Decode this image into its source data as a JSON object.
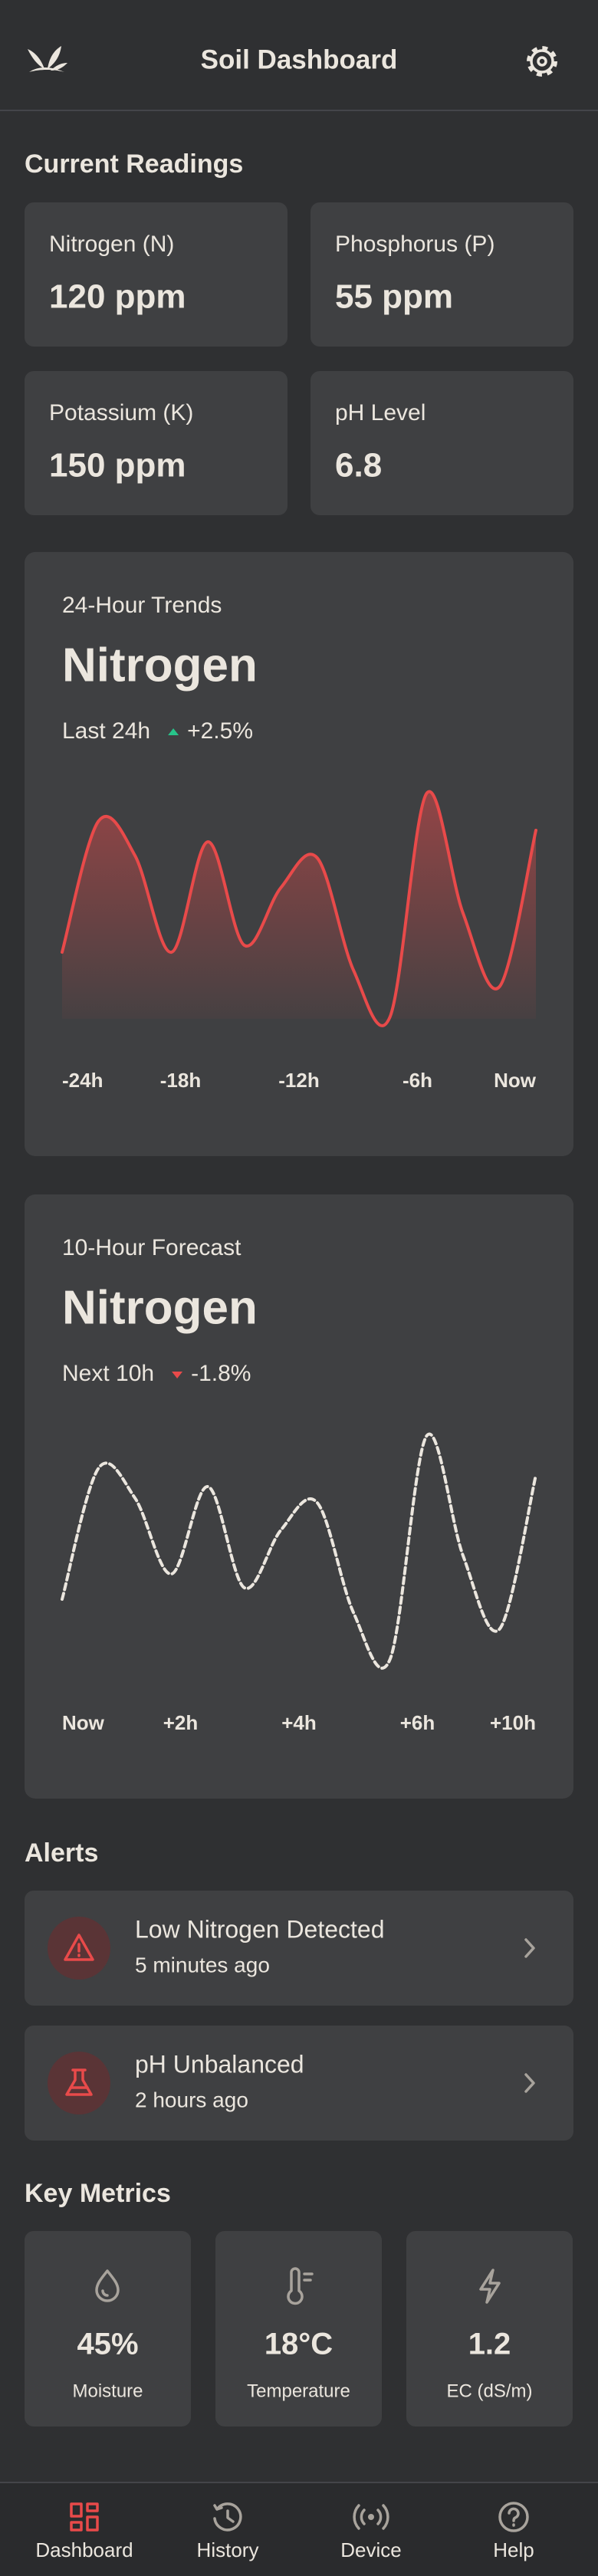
{
  "header": {
    "title": "Soil Dashboard"
  },
  "current_readings": {
    "title": "Current Readings",
    "cards": [
      {
        "label": "Nitrogen (N)",
        "value": "120 ppm"
      },
      {
        "label": "Phosphorus (P)",
        "value": "55 ppm"
      },
      {
        "label": "Potassium (K)",
        "value": "150 ppm"
      },
      {
        "label": "pH Level",
        "value": "6.8"
      }
    ]
  },
  "chart_data": [
    {
      "type": "line",
      "subtitle": "24-Hour Trends",
      "title": "Nitrogen",
      "period": "Last 24h",
      "change": "+2.5%",
      "change_color": "#27c48a",
      "color": "#e84a4a",
      "line_style": "solid",
      "area": true,
      "xticks": [
        "-24h",
        "-18h",
        "-12h",
        "-6h",
        "Now"
      ],
      "values": [
        29,
        86,
        71,
        29,
        77,
        32,
        57,
        70,
        21,
        1,
        98,
        46,
        14,
        82
      ],
      "ylim": [
        0,
        100
      ]
    },
    {
      "type": "line",
      "subtitle": "10-Hour Forecast",
      "title": "Nitrogen",
      "period": "Next 10h",
      "change": "-1.8%",
      "change_color": "#e84a4a",
      "color": "#ebe6de",
      "line_style": "dashed",
      "area": false,
      "xticks": [
        "Now",
        "+2h",
        "+4h",
        "+6h",
        "+10h"
      ],
      "values": [
        27,
        84,
        71,
        38,
        76,
        32,
        57,
        69,
        21,
        1,
        98,
        46,
        14,
        81
      ],
      "ylim": [
        0,
        100
      ]
    }
  ],
  "alerts": {
    "title": "Alerts",
    "items": [
      {
        "title": "Low Nitrogen Detected",
        "time": "5 minutes ago"
      },
      {
        "title": "pH Unbalanced",
        "time": "2 hours ago"
      }
    ]
  },
  "key_metrics": {
    "title": "Key Metrics",
    "items": [
      {
        "value": "45%",
        "label": "Moisture"
      },
      {
        "value": "18°C",
        "label": "Temperature"
      },
      {
        "value": "1.2",
        "label": "EC (dS/m)"
      }
    ]
  },
  "nav": [
    {
      "label": "Dashboard",
      "color": "#e84a4a"
    },
    {
      "label": "History",
      "color": "#a8a39c"
    },
    {
      "label": "Device",
      "color": "#a8a39c"
    },
    {
      "label": "Help",
      "color": "#a8a39c"
    }
  ]
}
